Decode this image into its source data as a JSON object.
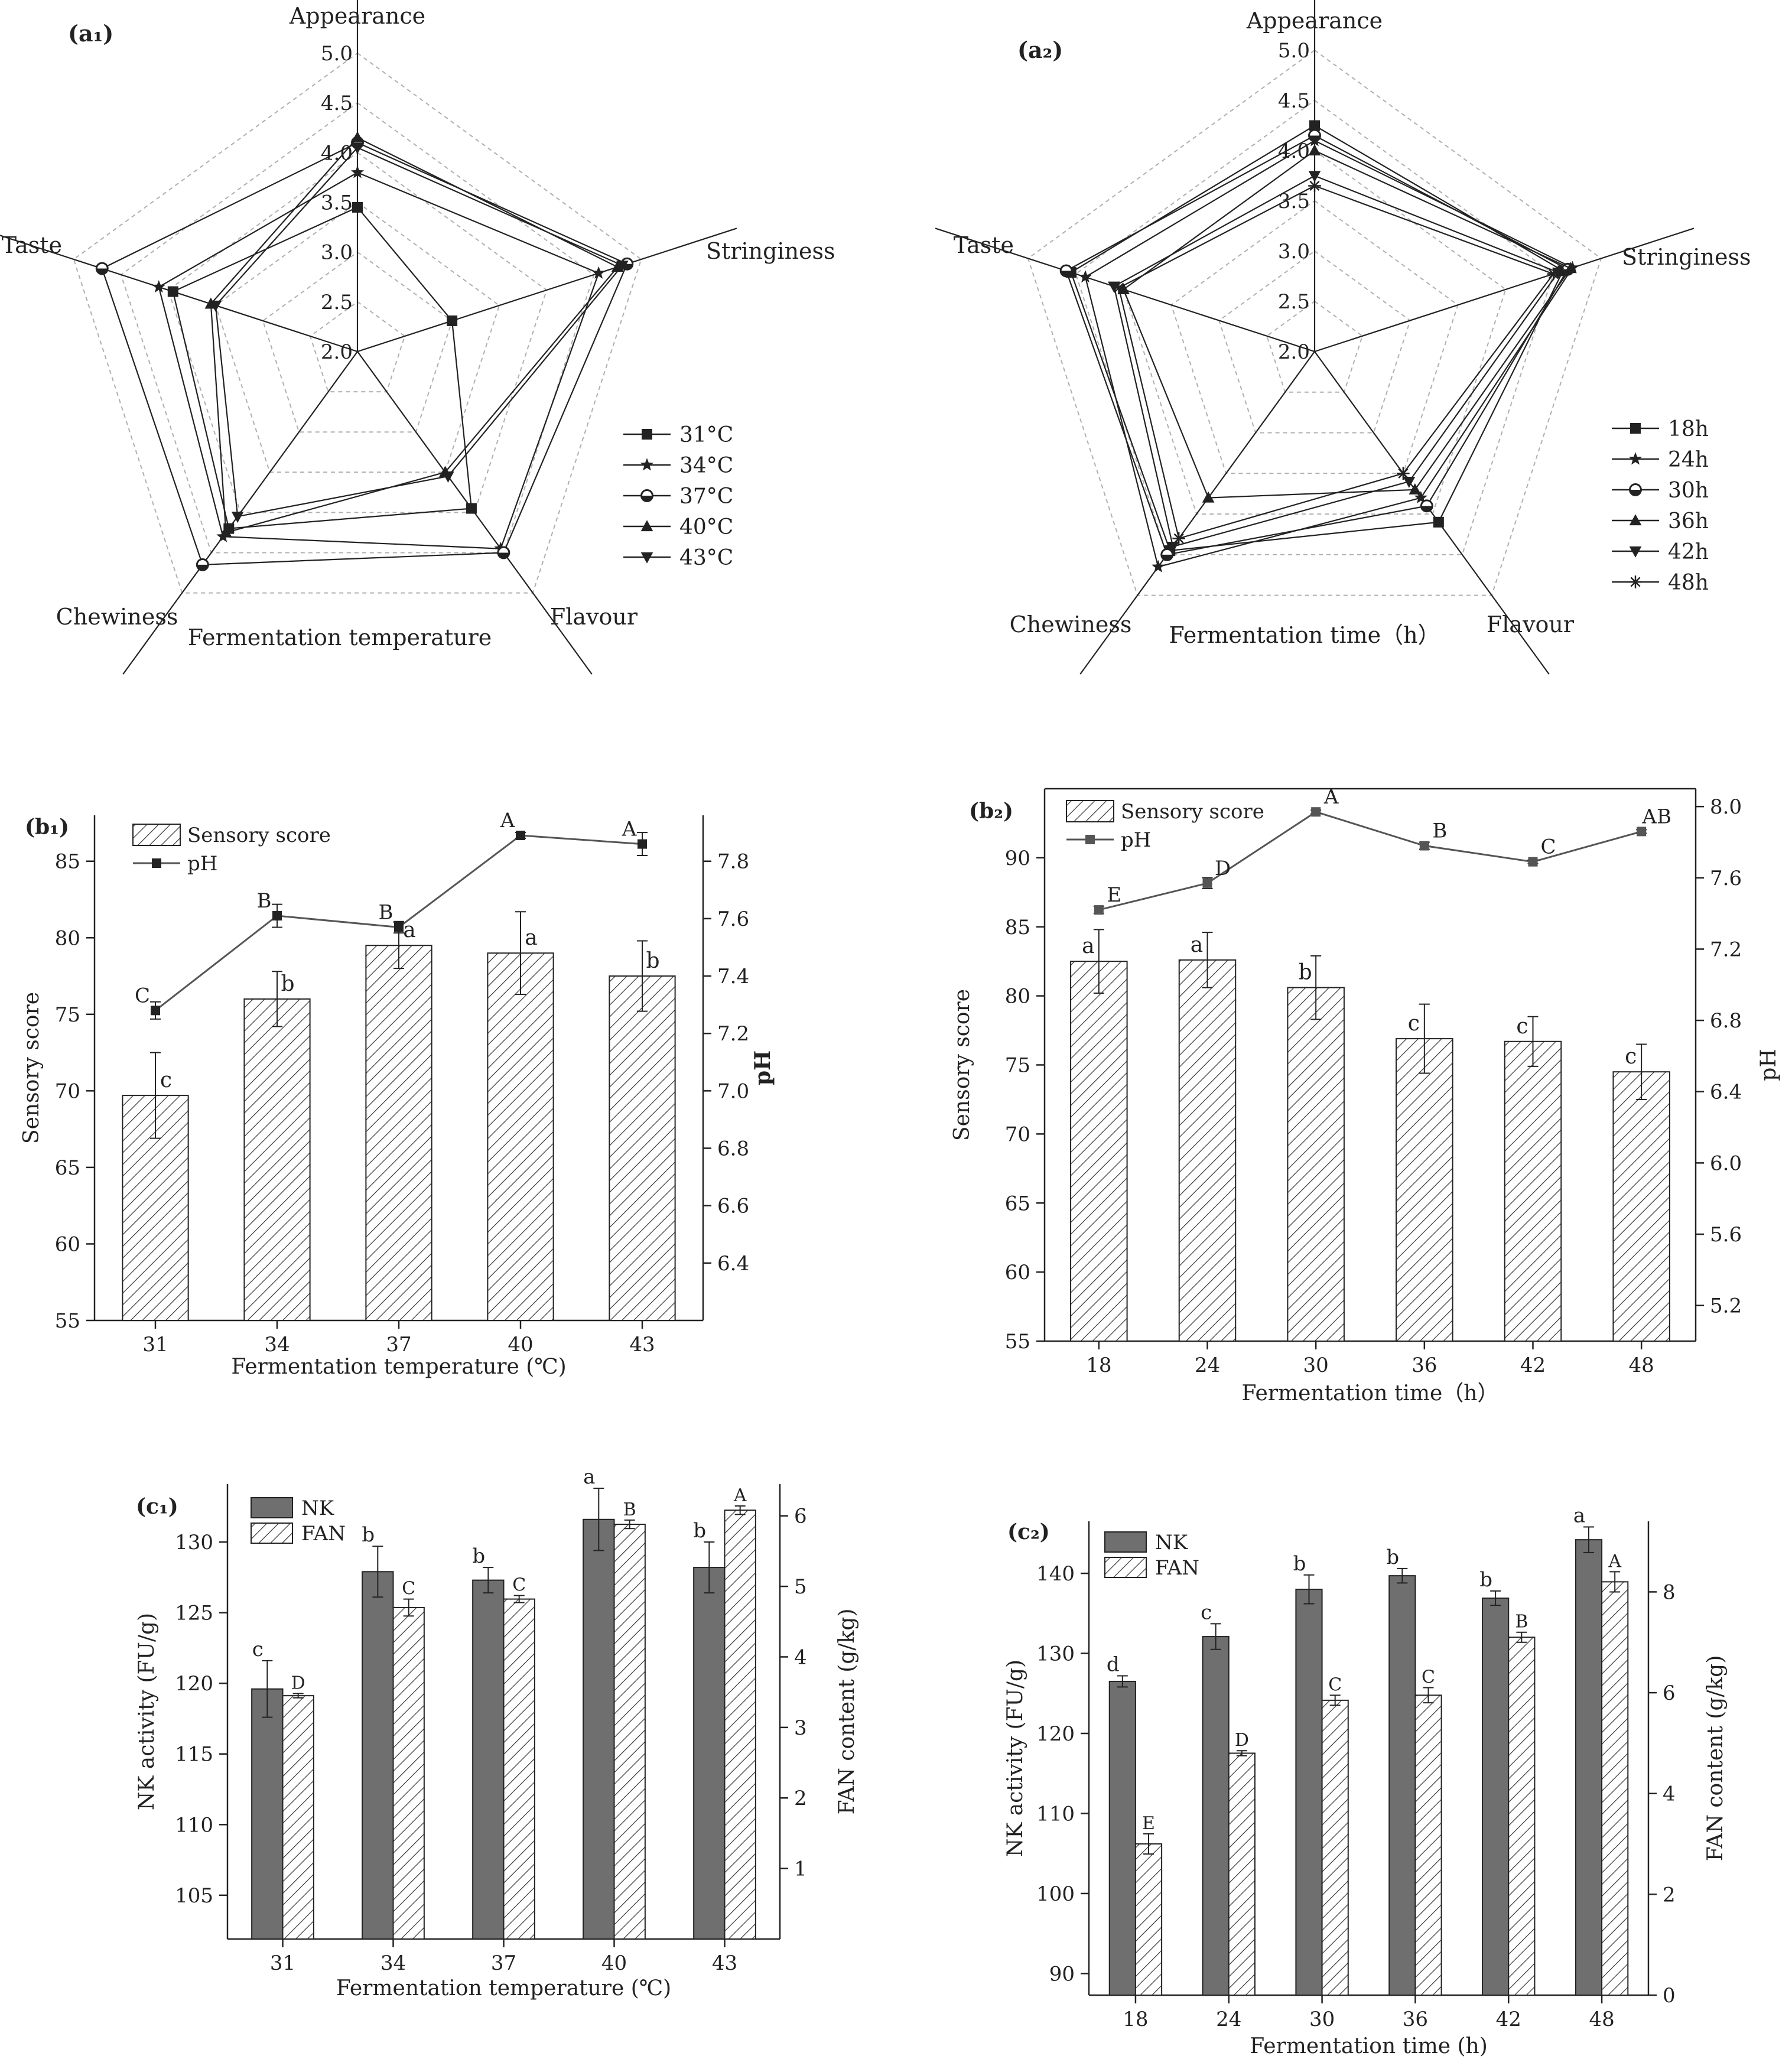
{
  "colors": {
    "ink": "#222222",
    "dark_bar": "#6f6f6f",
    "ph_line": "#555555",
    "grid": "#b0b0b0"
  },
  "chart_data": [
    {
      "id": "a1",
      "type": "radar",
      "panel_label": "(a₁)",
      "title": "Fermentation temperature",
      "axes": [
        "Appearance",
        "Stringiness",
        "Flavour",
        "Chewiness",
        "Taste"
      ],
      "radial_range": [
        2.0,
        5.0
      ],
      "radial_ticks": [
        "2.0",
        "2.5",
        "3.0",
        "3.5",
        "4.0",
        "4.5",
        "5.0"
      ],
      "series": [
        {
          "name": "31°C",
          "marker": "square",
          "values": [
            3.45,
            3.0,
            3.95,
            4.2,
            3.95
          ]
        },
        {
          "name": "34°C",
          "marker": "star",
          "values": [
            3.8,
            4.55,
            4.45,
            4.3,
            4.1
          ]
        },
        {
          "name": "37°C",
          "marker": "circle",
          "values": [
            4.1,
            4.85,
            4.5,
            4.65,
            4.7
          ]
        },
        {
          "name": "40°C",
          "marker": "triangle-up",
          "values": [
            4.15,
            4.75,
            3.5,
            4.25,
            3.55
          ]
        },
        {
          "name": "43°C",
          "marker": "triangle-down",
          "values": [
            4.05,
            4.8,
            3.55,
            4.05,
            3.5
          ]
        }
      ]
    },
    {
      "id": "a2",
      "type": "radar",
      "panel_label": "(a₂)",
      "title": "Fermentation time（h）",
      "axes": [
        "Appearance",
        "Stringiness",
        "Flavour",
        "Chewiness",
        "Taste"
      ],
      "radial_range": [
        2.0,
        5.0
      ],
      "radial_ticks": [
        "2.0",
        "2.5",
        "3.0",
        "3.5",
        "4.0",
        "4.5",
        "5.0"
      ],
      "series": [
        {
          "name": "18h",
          "marker": "square",
          "values": [
            4.25,
            4.6,
            4.1,
            4.45,
            4.55
          ]
        },
        {
          "name": "24h",
          "marker": "star",
          "values": [
            4.1,
            4.7,
            3.8,
            4.65,
            4.4
          ]
        },
        {
          "name": "30h",
          "marker": "circle",
          "values": [
            4.15,
            4.65,
            3.9,
            4.5,
            4.6
          ]
        },
        {
          "name": "36h",
          "marker": "triangle-up",
          "values": [
            4.0,
            4.68,
            3.7,
            3.8,
            4.0
          ]
        },
        {
          "name": "42h",
          "marker": "triangle-down",
          "values": [
            3.75,
            4.55,
            3.6,
            4.4,
            4.1
          ]
        },
        {
          "name": "48h",
          "marker": "asterisk",
          "values": [
            3.65,
            4.5,
            3.5,
            4.3,
            4.05
          ]
        }
      ]
    },
    {
      "id": "b1",
      "type": "bar",
      "panel_label": "(b₁)",
      "xlabel": "Fermentation temperature (℃)",
      "categories": [
        "31",
        "34",
        "37",
        "40",
        "43"
      ],
      "series": [
        {
          "name": "Sensory score",
          "kind": "bar",
          "axis": "left",
          "values": [
            69.7,
            76.0,
            79.5,
            79.0,
            77.5
          ],
          "errors": [
            2.8,
            1.8,
            1.5,
            2.7,
            2.3
          ],
          "letters": [
            "c",
            "b",
            "a",
            "a",
            "b"
          ]
        },
        {
          "name": "pH",
          "kind": "line",
          "axis": "right",
          "values": [
            7.28,
            7.61,
            7.57,
            7.89,
            7.86
          ],
          "errors": [
            0.03,
            0.04,
            0.02,
            0.01,
            0.04
          ],
          "letters": [
            "C",
            "B",
            "B",
            "A",
            "A"
          ]
        }
      ],
      "left_axis": {
        "label": "Sensory score",
        "range": [
          55,
          88
        ],
        "ticks": [
          "55",
          "60",
          "65",
          "70",
          "75",
          "80",
          "85"
        ]
      },
      "right_axis": {
        "label": "pH",
        "range": [
          6.2,
          7.96
        ],
        "ticks": [
          "6.4",
          "6.6",
          "6.8",
          "7.0",
          "7.2",
          "7.4",
          "7.6",
          "7.8"
        ]
      }
    },
    {
      "id": "b2",
      "type": "bar",
      "panel_label": "(b₂)",
      "xlabel": "Fermentation time（h）",
      "categories": [
        "18",
        "24",
        "30",
        "36",
        "42",
        "48"
      ],
      "series": [
        {
          "name": "Sensory score",
          "kind": "bar",
          "axis": "left",
          "values": [
            82.5,
            82.6,
            80.6,
            76.9,
            76.7,
            74.5
          ],
          "errors": [
            2.3,
            2.0,
            2.3,
            2.5,
            1.8,
            2.0
          ],
          "letters": [
            "a",
            "a",
            "b",
            "c",
            "c",
            "c"
          ]
        },
        {
          "name": "pH",
          "kind": "line",
          "axis": "right",
          "values": [
            7.42,
            7.57,
            7.97,
            7.78,
            7.69,
            7.86
          ],
          "errors": [
            0.02,
            0.03,
            0.01,
            0.02,
            0.01,
            0.01
          ],
          "letters": [
            "E",
            "D",
            "A",
            "B",
            "C",
            "AB"
          ]
        }
      ],
      "left_axis": {
        "label": "Sensory score",
        "range": [
          55,
          95
        ],
        "ticks": [
          "55",
          "60",
          "65",
          "70",
          "75",
          "80",
          "85",
          "90"
        ]
      },
      "right_axis": {
        "label": "pH",
        "range": [
          5.0,
          8.1
        ],
        "ticks": [
          "5.2",
          "5.6",
          "6.0",
          "6.4",
          "6.8",
          "7.2",
          "7.6",
          "8.0"
        ]
      }
    },
    {
      "id": "c1",
      "type": "bar",
      "panel_label": "(c₁)",
      "xlabel": "Fermentation temperature (℃)",
      "categories": [
        "31",
        "34",
        "37",
        "40",
        "43"
      ],
      "series": [
        {
          "name": "NK",
          "kind": "bar",
          "axis": "left",
          "values": [
            119.6,
            127.9,
            127.3,
            131.6,
            128.2
          ],
          "errors": [
            2.0,
            1.8,
            0.9,
            2.2,
            1.8
          ],
          "letters": [
            "c",
            "b",
            "b",
            "a",
            "b"
          ]
        },
        {
          "name": "FAN",
          "kind": "bar",
          "axis": "right",
          "values": [
            3.45,
            4.7,
            4.82,
            5.88,
            6.08
          ],
          "errors": [
            0.03,
            0.12,
            0.05,
            0.06,
            0.06
          ],
          "letters": [
            "D",
            "C",
            "C",
            "B",
            "A"
          ]
        }
      ],
      "left_axis": {
        "label": "NK activity (FU/g)",
        "range": [
          101.9,
          134.1
        ],
        "ticks": [
          "105",
          "110",
          "115",
          "120",
          "125",
          "130"
        ]
      },
      "right_axis": {
        "label": "FAN content (g/kg)",
        "range": [
          0,
          6.45
        ],
        "ticks": [
          "1",
          "2",
          "3",
          "4",
          "5",
          "6"
        ]
      }
    },
    {
      "id": "c2",
      "type": "bar",
      "panel_label": "(c₂)",
      "xlabel": "Fermentation time (h)",
      "categories": [
        "18",
        "24",
        "30",
        "36",
        "42",
        "48"
      ],
      "series": [
        {
          "name": "NK",
          "kind": "bar",
          "axis": "left",
          "values": [
            126.5,
            132.1,
            138.0,
            139.7,
            136.9,
            144.2
          ],
          "errors": [
            0.7,
            1.6,
            1.8,
            0.9,
            0.9,
            1.6
          ],
          "letters": [
            "d",
            "c",
            "b",
            "b",
            "b",
            "a"
          ]
        },
        {
          "name": "FAN",
          "kind": "bar",
          "axis": "right",
          "values": [
            3.0,
            4.8,
            5.85,
            5.95,
            7.1,
            8.2
          ],
          "errors": [
            0.2,
            0.05,
            0.1,
            0.15,
            0.1,
            0.2
          ],
          "letters": [
            "E",
            "D",
            "C",
            "C",
            "B",
            "A"
          ]
        }
      ],
      "left_axis": {
        "label": "NK activity (FU/g)",
        "range": [
          87.3,
          146.5
        ],
        "ticks": [
          "90",
          "100",
          "110",
          "120",
          "130",
          "140"
        ]
      },
      "right_axis": {
        "label": "FAN content (g/kg)",
        "range": [
          0,
          9.4
        ],
        "ticks": [
          "0",
          "2",
          "4",
          "6",
          "8"
        ]
      }
    }
  ]
}
